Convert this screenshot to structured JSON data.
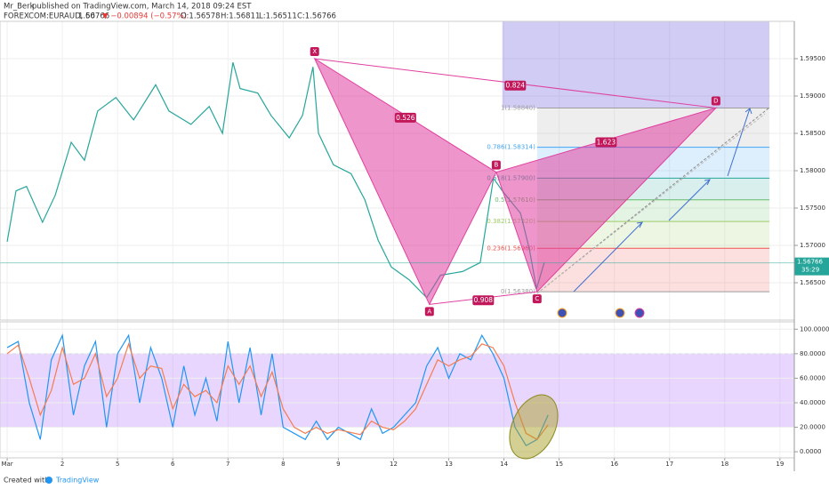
{
  "header": {
    "author": "Mr_Berk",
    "published": "published on TradingView.com, March 14, 2018 09:24 EST",
    "symbol": "FOREXCOM:EURAUD, 60",
    "last": "1.56766",
    "change": "▼ −0.00894 (−0.57%)",
    "open": "O:1.56578",
    "high": "H:1.56811",
    "low": "L:1.56511",
    "close": "C:1.56766"
  },
  "chart_data": [
    {
      "type": "line",
      "x": [
        0,
        0.16,
        0.35,
        0.64,
        0.87,
        1.16,
        1.4,
        1.64,
        1.97,
        2.29,
        2.69,
        2.93,
        3.33,
        3.66,
        3.9,
        4.09,
        4.22,
        4.54,
        4.78,
        5.11,
        5.35,
        5.54,
        5.64,
        5.91,
        6.23,
        6.48,
        6.72,
        6.96,
        7.28,
        7.6,
        7.85,
        8.25,
        8.57,
        8.81,
        8.97,
        9.3,
        9.46,
        9.59,
        9.73
      ],
      "series": [
        {
          "color": "#26a69a",
          "values": [
            1.5705,
            1.5773,
            1.5779,
            1.5731,
            1.5767,
            1.5838,
            1.5814,
            1.588,
            1.5898,
            1.5868,
            1.5915,
            1.588,
            1.5862,
            1.5886,
            1.585,
            1.5945,
            1.591,
            1.5904,
            1.5874,
            1.5844,
            1.5874,
            1.5939,
            1.585,
            1.5808,
            1.5796,
            1.5761,
            1.5707,
            1.5671,
            1.5654,
            1.563,
            1.566,
            1.5665,
            1.5677,
            1.579,
            1.5773,
            1.5743,
            1.5695,
            1.5642,
            1.5677
          ]
        }
      ],
      "xlim": [
        -0.13,
        14.26
      ],
      "ylim": [
        1.56,
        1.6
      ],
      "yticks": [
        {
          "value": 1.595,
          "label": "1.59500"
        },
        {
          "value": 1.59,
          "label": "1.59000"
        },
        {
          "value": 1.585,
          "label": "1.58500"
        },
        {
          "value": 1.58,
          "label": "1.58000"
        },
        {
          "value": 1.575,
          "label": "1.57500"
        },
        {
          "value": 1.57,
          "label": "1.57000"
        },
        {
          "value": 1.565,
          "label": "1.56500"
        }
      ],
      "xticks": [
        {
          "value": 0,
          "label": "Mar"
        },
        {
          "value": 1,
          "label": "2"
        },
        {
          "value": 2,
          "label": "5"
        },
        {
          "value": 3,
          "label": "6"
        },
        {
          "value": 4,
          "label": "7"
        },
        {
          "value": 5,
          "label": "8"
        },
        {
          "value": 6,
          "label": "9"
        },
        {
          "value": 7,
          "label": "12"
        },
        {
          "value": 8,
          "label": "13"
        },
        {
          "value": 9,
          "label": "14"
        },
        {
          "value": 10,
          "label": "15"
        },
        {
          "value": 11,
          "label": "16"
        },
        {
          "value": 12,
          "label": "17"
        },
        {
          "value": 13,
          "label": "18"
        },
        {
          "value": 14,
          "label": "19"
        }
      ],
      "last_price": 1.56766,
      "countdown": "35:29",
      "pattern": {
        "color": "#e040a0",
        "points": [
          {
            "label": "X",
            "x": 5.57,
            "y": 1.595
          },
          {
            "label": "A",
            "x": 7.65,
            "y": 1.5621
          },
          {
            "label": "B",
            "x": 8.86,
            "y": 1.5798
          },
          {
            "label": "C",
            "x": 9.6,
            "y": 1.5638
          },
          {
            "label": "D",
            "x": 12.84,
            "y": 1.5884
          }
        ],
        "ratios": [
          0.526,
          0.824,
          1.623,
          0.908
        ]
      },
      "fib_levels": [
        {
          "value": 1.5884,
          "label": "1(1.58840)",
          "color": "#9e9e9e"
        },
        {
          "value": 1.58314,
          "label": "0.786(1.58314)",
          "color": "#42a5f5"
        },
        {
          "value": 1.579,
          "label": "0.618(1.57900)",
          "color": "#26a69a"
        },
        {
          "value": 1.5761,
          "label": "0.5(1.57610)",
          "color": "#66bb6a"
        },
        {
          "value": 1.5732,
          "label": "0.382(1.57320)",
          "color": "#9ccc65"
        },
        {
          "value": 1.56961,
          "label": "0.236(1.56960)",
          "color": "#ef5350"
        },
        {
          "value": 1.5638,
          "label": "0(1.56380)",
          "color": "#9e9e9e"
        }
      ]
    },
    {
      "type": "line",
      "x": [
        0,
        0.2,
        0.4,
        0.6,
        0.8,
        1,
        1.2,
        1.4,
        1.6,
        1.8,
        2,
        2.2,
        2.4,
        2.6,
        2.8,
        3,
        3.2,
        3.4,
        3.6,
        3.8,
        4,
        4.2,
        4.4,
        4.6,
        4.8,
        5,
        5.2,
        5.4,
        5.6,
        5.8,
        6,
        6.2,
        6.4,
        6.6,
        6.8,
        7,
        7.2,
        7.4,
        7.6,
        7.8,
        8,
        8.2,
        8.4,
        8.6,
        8.8,
        9,
        9.2,
        9.4,
        9.6,
        9.8
      ],
      "series": [
        {
          "color": "#2196f3",
          "values": [
            85,
            90,
            40,
            10,
            75,
            95,
            30,
            70,
            90,
            20,
            80,
            95,
            40,
            85,
            60,
            20,
            70,
            30,
            60,
            25,
            90,
            40,
            85,
            30,
            80,
            20,
            15,
            10,
            25,
            10,
            20,
            15,
            10,
            35,
            15,
            20,
            30,
            40,
            70,
            85,
            60,
            80,
            75,
            95,
            80,
            60,
            20,
            5,
            10,
            30
          ]
        },
        {
          "color": "#f57c4f",
          "values": [
            80,
            87,
            60,
            30,
            50,
            85,
            55,
            60,
            80,
            45,
            60,
            88,
            60,
            70,
            68,
            35,
            55,
            45,
            50,
            40,
            70,
            55,
            70,
            45,
            65,
            35,
            20,
            15,
            20,
            15,
            18,
            16,
            14,
            25,
            20,
            18,
            25,
            35,
            55,
            75,
            70,
            75,
            78,
            88,
            85,
            70,
            40,
            15,
            10,
            22
          ]
        }
      ],
      "xlim": [
        -0.13,
        14.26
      ],
      "ylim": [
        -5,
        106
      ],
      "band": [
        20,
        80
      ],
      "yticks": [
        {
          "value": 100,
          "label": "100.0000"
        },
        {
          "value": 80,
          "label": "80.0000"
        },
        {
          "value": 60,
          "label": "60.0000"
        },
        {
          "value": 40,
          "label": "40.0000"
        },
        {
          "value": 20,
          "label": "20.0000"
        },
        {
          "value": 0,
          "label": "0.0000"
        }
      ]
    }
  ],
  "footer": {
    "created": "Created with",
    "brand": "TradingView"
  }
}
